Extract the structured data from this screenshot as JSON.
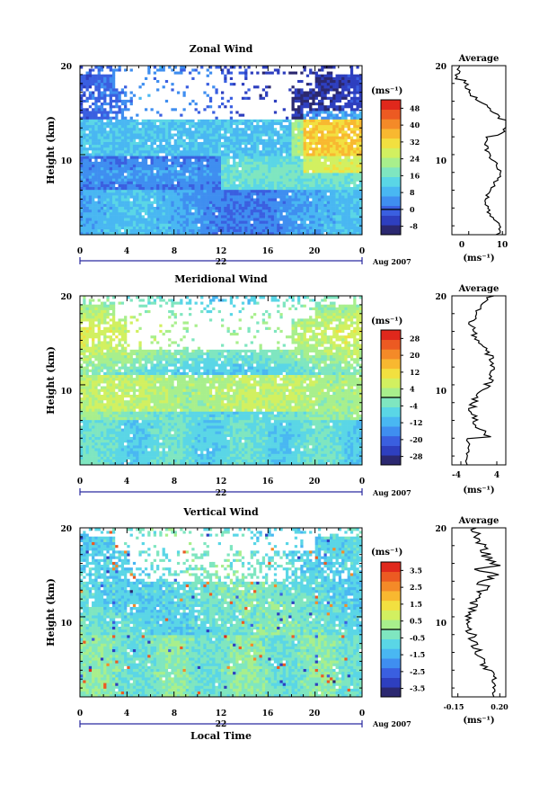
{
  "chart_data": [
    {
      "type": "heatmap",
      "title": "Zonal Wind",
      "ylabel": "Height (km)",
      "xlabel": "",
      "xticks": [
        "0",
        "4",
        "8",
        "12",
        "16",
        "20",
        "0"
      ],
      "yticks": [
        "20",
        "10"
      ],
      "ylim": [
        1,
        20
      ],
      "xlim": [
        0,
        24
      ],
      "date_label": "22",
      "month_label": "Aug 2007",
      "colorbar": {
        "unit": "(ms⁻¹)",
        "ticks": [
          "48",
          "40",
          "32",
          "24",
          "16",
          "8",
          "0",
          "-8"
        ],
        "range": [
          -12,
          52
        ]
      },
      "profile": {
        "title": "Average",
        "xticks": [
          "0",
          "10"
        ],
        "xlabel": "(ms⁻¹)",
        "xlim": [
          -5,
          11
        ],
        "yticks": [
          "20",
          "10"
        ]
      },
      "field_type": "zonal"
    },
    {
      "type": "heatmap",
      "title": "Meridional Wind",
      "ylabel": "Height (km)",
      "xlabel": "",
      "xticks": [
        "0",
        "4",
        "8",
        "12",
        "16",
        "20",
        "0"
      ],
      "yticks": [
        "20",
        "10"
      ],
      "ylim": [
        1,
        20
      ],
      "xlim": [
        0,
        24
      ],
      "date_label": "22",
      "month_label": "Aug 2007",
      "colorbar": {
        "unit": "(ms⁻¹)",
        "ticks": [
          "28",
          "20",
          "12",
          "4",
          "-4",
          "-12",
          "-20",
          "-28"
        ],
        "range": [
          -32,
          32
        ]
      },
      "profile": {
        "title": "Average",
        "xticks": [
          "-4",
          "4"
        ],
        "xlabel": "(ms⁻¹)",
        "xlim": [
          -6,
          6
        ],
        "yticks": [
          "20",
          "10"
        ]
      },
      "field_type": "meridional"
    },
    {
      "type": "heatmap",
      "title": "Vertical Wind",
      "ylabel": "Height (km)",
      "xlabel": "Local Time",
      "xticks": [
        "0",
        "4",
        "8",
        "12",
        "16",
        "20",
        "0"
      ],
      "yticks": [
        "20",
        "10"
      ],
      "ylim": [
        1,
        20
      ],
      "xlim": [
        0,
        24
      ],
      "date_label": "22",
      "month_label": "Aug 2007",
      "colorbar": {
        "unit": "(ms⁻¹)",
        "ticks": [
          "3.5",
          "2.5",
          "1.5",
          "0.5",
          "-0.5",
          "-1.5",
          "-2.5",
          "-3.5"
        ],
        "range": [
          -4,
          4
        ]
      },
      "profile": {
        "title": "Average",
        "xticks": [
          "-0.15",
          "0.20"
        ],
        "xlabel": "(ms⁻¹)",
        "xlim": [
          -0.2,
          0.25
        ],
        "yticks": [
          "20",
          "10"
        ]
      },
      "field_type": "vertical"
    }
  ],
  "colors": {
    "palette": [
      "#2b2870",
      "#2e3fbf",
      "#3a5fe0",
      "#3f8ef0",
      "#49b7f2",
      "#5ad6e6",
      "#7fe6c0",
      "#a8ef8c",
      "#d2f060",
      "#f2e040",
      "#f8b830",
      "#f48a28",
      "#ec5a22",
      "#e0281c"
    ],
    "profile_line": "#000000",
    "axis": "#000000",
    "gap": "#ffffff"
  }
}
